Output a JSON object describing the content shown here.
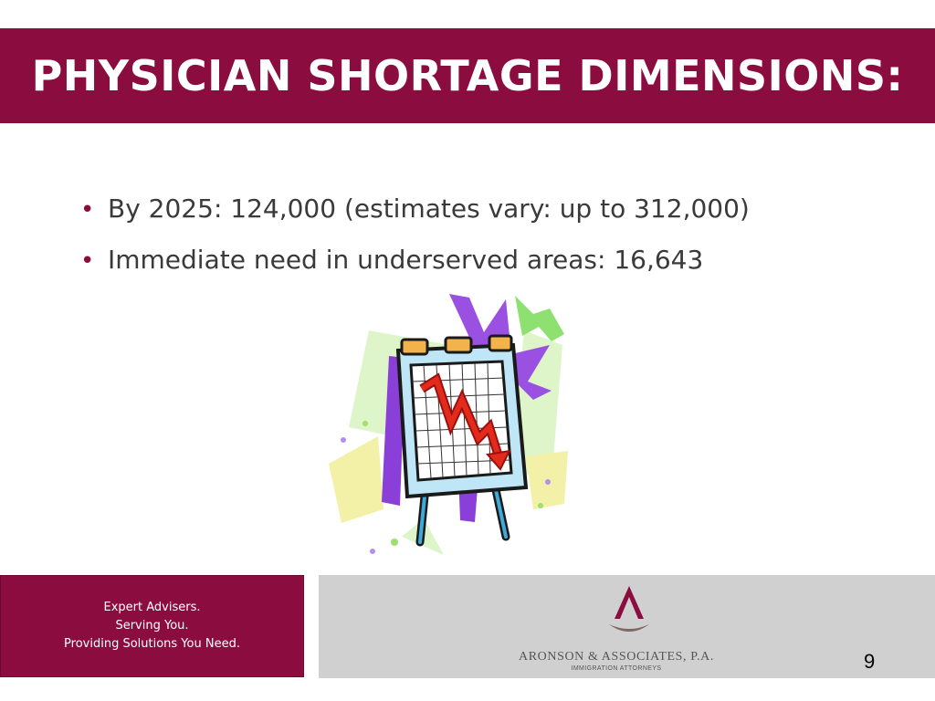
{
  "slide": {
    "title": "PHYSICIAN SHORTAGE DIMENSIONS:",
    "bullets": [
      "By 2025: 124,000 (estimates vary: up to 312,000)",
      "Immediate need in underserved areas: 16,643"
    ],
    "page_number": "9"
  },
  "footer": {
    "tagline": [
      "Expert Advisers.",
      "Serving You.",
      "Providing  Solutions You Need."
    ],
    "logo_name": "ARONSON & ASSOCIATES, P.A.",
    "logo_subtitle": "IMMIGRATION ATTORNEYS"
  },
  "colors": {
    "brand": "#8b0d3f",
    "footer_gray": "#d0d0d0",
    "body_text": "#3a3a3a"
  },
  "icons": {
    "clipart": "easel-chart-declining-arrow-icon",
    "logo": "aronson-logo-icon"
  }
}
